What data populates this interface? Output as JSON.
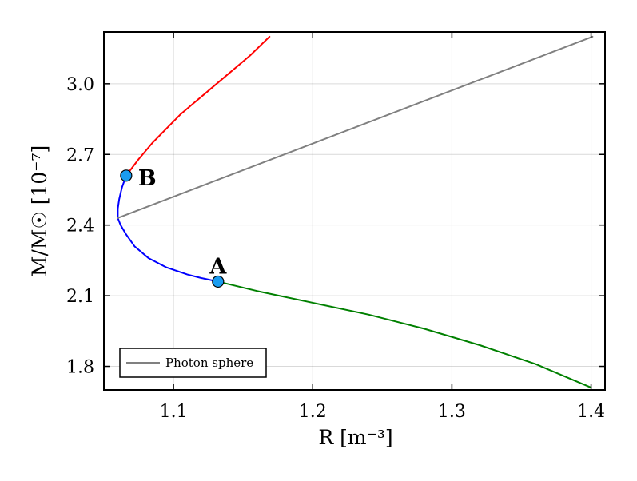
{
  "chart_data": {
    "type": "line",
    "xlabel": "R [m⁻³]",
    "ylabel": "M/M☉ [10⁻⁷]",
    "xlim": [
      1.05,
      1.41
    ],
    "ylim": [
      1.7,
      3.22
    ],
    "x_ticks": [
      1.1,
      1.2,
      1.3,
      1.4
    ],
    "x_tick_labels": [
      "1.1",
      "1.2",
      "1.3",
      "1.4"
    ],
    "y_ticks": [
      1.8,
      2.1,
      2.4,
      2.7,
      3.0
    ],
    "y_tick_labels": [
      "1.8",
      "2.1",
      "2.4",
      "2.7",
      "3.0"
    ],
    "grid": true,
    "legend_position": "bottom-left",
    "series": [
      {
        "color": "#ff0000",
        "points": [
          [
            1.066,
            2.61
          ],
          [
            1.075,
            2.68
          ],
          [
            1.085,
            2.75
          ],
          [
            1.095,
            2.81
          ],
          [
            1.105,
            2.87
          ],
          [
            1.115,
            2.92
          ],
          [
            1.125,
            2.97
          ],
          [
            1.135,
            3.02
          ],
          [
            1.145,
            3.07
          ],
          [
            1.155,
            3.12
          ],
          [
            1.162,
            3.16
          ],
          [
            1.169,
            3.2
          ]
        ]
      },
      {
        "color": "#0000ff",
        "points": [
          [
            1.066,
            2.61
          ],
          [
            1.063,
            2.56
          ],
          [
            1.061,
            2.51
          ],
          [
            1.06,
            2.47
          ],
          [
            1.06,
            2.43
          ],
          [
            1.062,
            2.4
          ],
          [
            1.066,
            2.36
          ],
          [
            1.072,
            2.31
          ],
          [
            1.082,
            2.26
          ],
          [
            1.095,
            2.22
          ],
          [
            1.11,
            2.19
          ],
          [
            1.12,
            2.175
          ],
          [
            1.132,
            2.16
          ]
        ]
      },
      {
        "color": "#008000",
        "points": [
          [
            1.132,
            2.16
          ],
          [
            1.16,
            2.12
          ],
          [
            1.2,
            2.07
          ],
          [
            1.24,
            2.02
          ],
          [
            1.28,
            1.96
          ],
          [
            1.32,
            1.89
          ],
          [
            1.36,
            1.81
          ],
          [
            1.4,
            1.71
          ]
        ]
      },
      {
        "name": "Photon sphere",
        "color": "#808080",
        "points": [
          [
            1.06,
            2.43
          ],
          [
            1.401,
            3.2
          ]
        ]
      }
    ],
    "markers": [
      {
        "label": "B",
        "x": 1.066,
        "y": 2.61,
        "color": "#1a9cf0"
      },
      {
        "label": "A",
        "x": 1.132,
        "y": 2.16,
        "color": "#1a9cf0"
      }
    ]
  }
}
